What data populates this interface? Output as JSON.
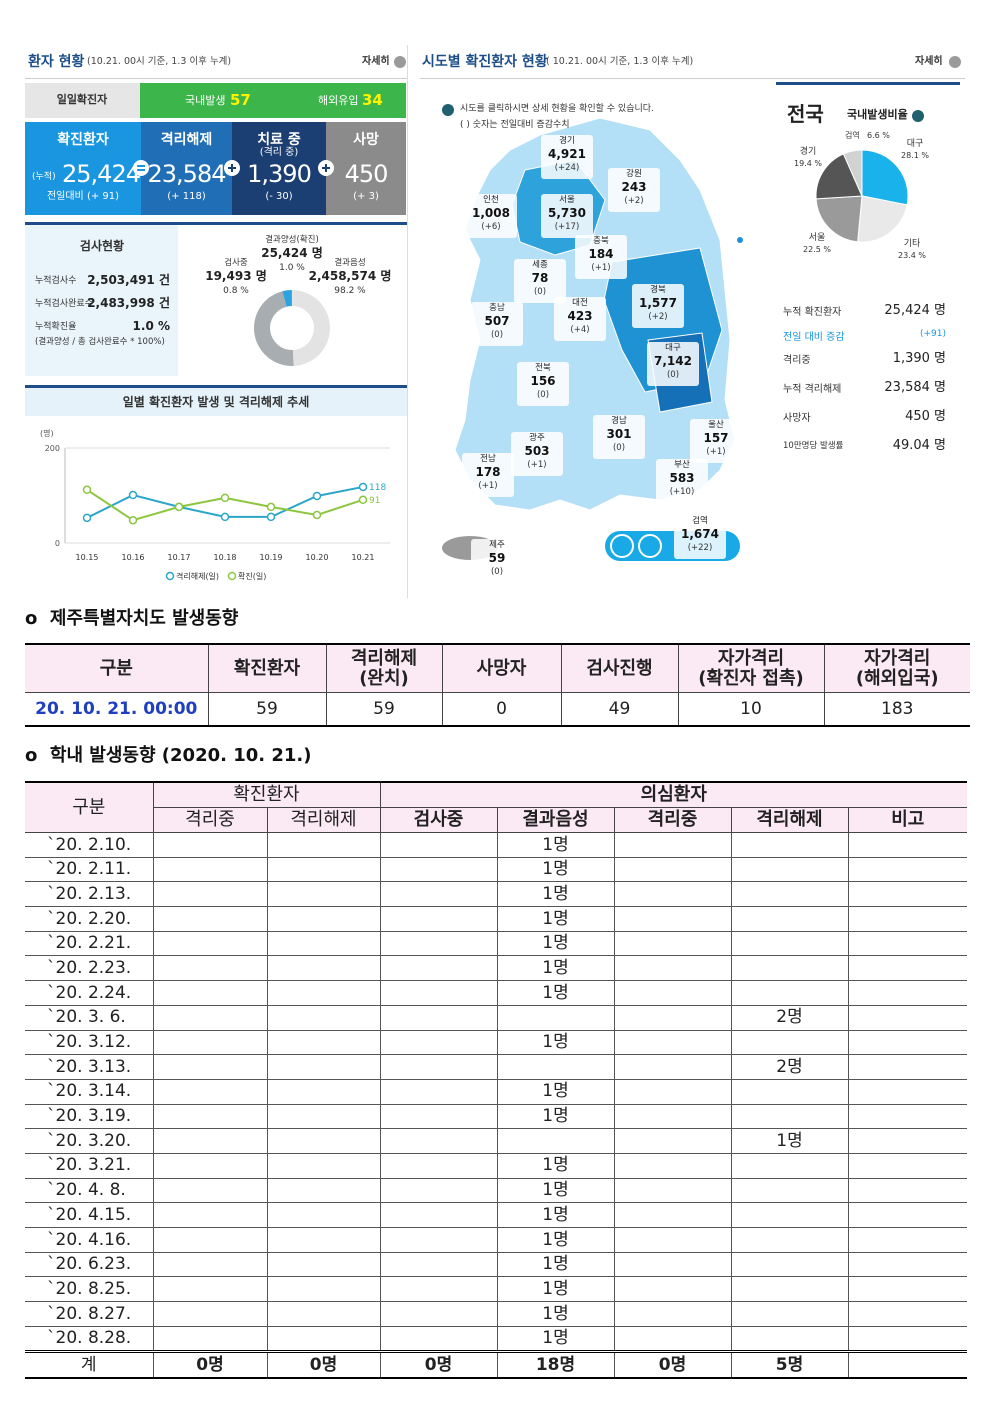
{
  "status_panel": {
    "title": "환자 현황",
    "subtitle": "(10.21. 00시 기준, 1.3 이후 누계)",
    "more": "자세히",
    "tabs": {
      "daily": "일일확진자",
      "domestic_label": "국내발생",
      "domestic": "57",
      "overseas_label": "해외유입",
      "overseas": "34"
    },
    "cards": [
      {
        "label": "확진환자",
        "prefix": "(누적)",
        "value": "25,424",
        "change": "전일대비 (+ 91)"
      },
      {
        "label": "격리해제",
        "value": "23,584",
        "change": "(+ 118)"
      },
      {
        "label": "치료 중",
        "sub": "(격리 중)",
        "value": "1,390",
        "change": "(- 30)"
      },
      {
        "label": "사망",
        "value": "450",
        "change": "(+ 3)"
      }
    ],
    "tests": {
      "title": "검사현황",
      "rows": [
        {
          "label": "누적검사수",
          "value": "2,503,491 건"
        },
        {
          "label": "누적검사완료수",
          "value": "2,483,998 건"
        },
        {
          "label": "누적확진율",
          "value": "1.0 %"
        }
      ],
      "note": "(결과양성 / 총 검사완료수 * 100%)",
      "donut": [
        {
          "label": "검사중",
          "count": "19,493 명",
          "share": "0.8 %"
        },
        {
          "label": "결과양성(확진)",
          "count": "25,424 명",
          "share": "1.0 %"
        },
        {
          "label": "결과음성",
          "count": "2,458,574 명",
          "share": "98.2 %"
        }
      ]
    }
  },
  "region_panel": {
    "title": "시도별 확진환자 현황",
    "subtitle": "( 10.21. 00시 기준, 1.3 이후 누계)",
    "more": "자세히",
    "notes": [
      "시도를 클릭하시면 상세 현황을 확인할 수 있습니다.",
      "( ) 숫자는 전일대비 증감수치"
    ],
    "regions": [
      {
        "name": "경기",
        "count": "4,921",
        "change": "(+24)"
      },
      {
        "name": "강원",
        "count": "243",
        "change": "(+2)"
      },
      {
        "name": "인천",
        "count": "1,008",
        "change": "(+6)"
      },
      {
        "name": "서울",
        "count": "5,730",
        "change": "(+17)"
      },
      {
        "name": "충북",
        "count": "184",
        "change": "(+1)"
      },
      {
        "name": "세종",
        "count": "78",
        "change": "(0)"
      },
      {
        "name": "충남",
        "count": "507",
        "change": "(0)"
      },
      {
        "name": "대전",
        "count": "423",
        "change": "(+4)"
      },
      {
        "name": "경북",
        "count": "1,577",
        "change": "(+2)"
      },
      {
        "name": "대구",
        "count": "7,142",
        "change": "(0)"
      },
      {
        "name": "전북",
        "count": "156",
        "change": "(0)"
      },
      {
        "name": "경남",
        "count": "301",
        "change": "(0)"
      },
      {
        "name": "울산",
        "count": "157",
        "change": "(+1)"
      },
      {
        "name": "광주",
        "count": "503",
        "change": "(+1)"
      },
      {
        "name": "전남",
        "count": "178",
        "change": "(+1)"
      },
      {
        "name": "부산",
        "count": "583",
        "change": "(+10)"
      },
      {
        "name": "제주",
        "count": "59",
        "change": "(0)"
      },
      {
        "name": "검역",
        "count": "1,674",
        "change": "(+22)"
      }
    ],
    "national": {
      "title": "전국",
      "ratio_title": "국내발생비율",
      "rows": [
        {
          "label": "누적 확진환자",
          "value": "25,424 명"
        },
        {
          "label": "전일 대비 증감",
          "value": "(+91)"
        },
        {
          "label": "격리중",
          "value": "1,390 명"
        },
        {
          "label": "누적 격리해제",
          "value": "23,584 명"
        },
        {
          "label": "사망자",
          "value": "450 명"
        },
        {
          "label": "10만명당 발생률",
          "value": "49.04 명"
        }
      ]
    }
  },
  "chart_data": [
    {
      "type": "line",
      "title": "일별 확진환자 발생 및 격리해제 추세",
      "y_unit": "(명)",
      "categories": [
        "10.15",
        "10.16",
        "10.17",
        "10.18",
        "10.19",
        "10.20",
        "10.21"
      ],
      "ylim": [
        0,
        200
      ],
      "yticks": [
        0,
        200
      ],
      "series": [
        {
          "name": "격리해제(일)",
          "color": "#2ba6c8",
          "values": [
            53,
            101,
            76,
            55,
            55,
            99,
            118
          ]
        },
        {
          "name": "확진(일)",
          "color": "#8cc63f",
          "values": [
            112,
            48,
            76,
            95,
            76,
            59,
            91
          ]
        }
      ]
    },
    {
      "type": "pie",
      "categories": [
        "대구",
        "기타",
        "서울",
        "경기",
        "검역"
      ],
      "values": [
        28.1,
        23.4,
        22.5,
        19.4,
        6.6
      ],
      "value_labels": [
        "28.1 %",
        "23.4 %",
        "22.5 %",
        "19.4 %",
        "6.6 %"
      ],
      "colors": [
        "#1ab2ea",
        "#e9e9e9",
        "#9a9a9a",
        "#555555",
        "#d2d2d2"
      ]
    }
  ],
  "jeju_section": {
    "heading": "o  제주특별자치도 발생동향",
    "headers": [
      "구분",
      "확진환자",
      "격리해제\n(완치)",
      "사망자",
      "검사진행",
      "자가격리\n(확진자 접촉)",
      "자가격리\n(해외입국)"
    ],
    "row": [
      "20. 10. 21. 00:00",
      "59",
      "59",
      "0",
      "49",
      "10",
      "183"
    ]
  },
  "campus_section": {
    "heading": "o  학내 발생동향 (2020. 10. 21.)",
    "group_headers": {
      "label": "구분",
      "confirmed": "확진환자",
      "suspected": "의심환자"
    },
    "headers": [
      "격리중",
      "격리해제",
      "검사중",
      "결과음성",
      "격리중",
      "격리해제",
      "비고"
    ],
    "rows": [
      {
        "date": "`20. 2.10.",
        "negative": "1명"
      },
      {
        "date": "`20. 2.11.",
        "negative": "1명"
      },
      {
        "date": "`20. 2.13.",
        "negative": "1명"
      },
      {
        "date": "`20. 2.20.",
        "negative": "1명"
      },
      {
        "date": "`20. 2.21.",
        "negative": "1명"
      },
      {
        "date": "`20. 2.23.",
        "negative": "1명"
      },
      {
        "date": "`20. 2.24.",
        "negative": "1명"
      },
      {
        "date": "`20. 3.  6.",
        "released": "2명"
      },
      {
        "date": "`20. 3.12.",
        "negative": "1명"
      },
      {
        "date": "`20. 3.13.",
        "released": "2명"
      },
      {
        "date": "`20. 3.14.",
        "negative": "1명"
      },
      {
        "date": "`20. 3.19.",
        "negative": "1명"
      },
      {
        "date": "`20. 3.20.",
        "released": "1명"
      },
      {
        "date": "`20. 3.21.",
        "negative": "1명"
      },
      {
        "date": "`20. 4.  8.",
        "negative": "1명"
      },
      {
        "date": "`20. 4.15.",
        "negative": "1명"
      },
      {
        "date": "`20. 4.16.",
        "negative": "1명"
      },
      {
        "date": "`20. 6.23.",
        "negative": "1명"
      },
      {
        "date": "`20. 8.25.",
        "negative": "1명"
      },
      {
        "date": "`20. 8.27.",
        "negative": "1명"
      },
      {
        "date": "`20. 8.28.",
        "negative": "1명"
      }
    ],
    "total": {
      "label": "계",
      "values": [
        "0명",
        "0명",
        "0명",
        "18명",
        "0명",
        "5명"
      ]
    }
  }
}
